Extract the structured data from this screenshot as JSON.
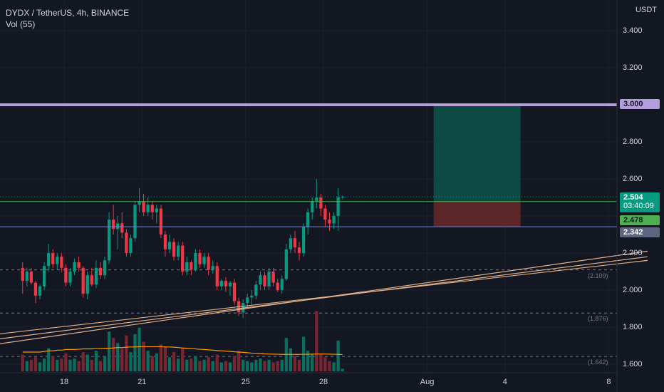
{
  "header": {
    "title": "DYDX / TetherUS, 4h, BINANCE",
    "indicator": "Vol (55)"
  },
  "price_axis": {
    "currency": "USDT",
    "ticks": [
      {
        "value": 3.4,
        "label": "3.400"
      },
      {
        "value": 3.2,
        "label": "3.200"
      },
      {
        "value": 2.8,
        "label": "2.800"
      },
      {
        "value": 2.6,
        "label": "2.600"
      },
      {
        "value": 2.2,
        "label": "2.200"
      },
      {
        "value": 2.0,
        "label": "2.000"
      },
      {
        "value": 1.8,
        "label": "1.800"
      },
      {
        "value": 1.6,
        "label": "1.600"
      }
    ]
  },
  "time_axis": {
    "ticks": [
      {
        "label": "18",
        "day": 18
      },
      {
        "label": "21",
        "day": 21
      },
      {
        "label": "25",
        "day": 25
      },
      {
        "label": "28",
        "day": 28
      },
      {
        "label": "Aug",
        "day": 32
      },
      {
        "label": "4",
        "day": 35
      },
      {
        "label": "8",
        "day": 39
      }
    ]
  },
  "price_labels": {
    "resistance": {
      "value": "3.000",
      "color": "#b39ddb",
      "text_color": "#131722"
    },
    "last_price": {
      "value": "2.504",
      "countdown": "03:40:09",
      "color": "#089981"
    },
    "entry": {
      "value": "2.478",
      "color": "#4caf50"
    },
    "stop": {
      "value": "2.342",
      "color": "#5d6580"
    }
  },
  "horizontal_levels": [
    {
      "value": 2.109,
      "label": "(2.109)"
    },
    {
      "value": 1.876,
      "label": "(1.876)"
    },
    {
      "value": 1.642,
      "label": "(1.642)"
    }
  ],
  "position_tool": {
    "entry": 2.478,
    "target": 3.0,
    "stop": 2.342,
    "start_day": 32.25,
    "end_day": 35.6,
    "profit_color": "#0d4a44",
    "loss_color": "#5c2628"
  },
  "chart_data": {
    "type": "candlestick",
    "title": "DYDX / TetherUS, 4h, BINANCE",
    "interval": "4h",
    "ylim": [
      1.56,
      3.5
    ],
    "volume_indicator": "Vol (55)",
    "candles": [
      {
        "o": 2.12,
        "h": 2.15,
        "l": 1.98,
        "c": 2.05
      },
      {
        "o": 2.05,
        "h": 2.12,
        "l": 2.02,
        "c": 2.1
      },
      {
        "o": 2.1,
        "h": 2.12,
        "l": 2.03,
        "c": 2.04
      },
      {
        "o": 2.04,
        "h": 2.05,
        "l": 1.93,
        "c": 1.97
      },
      {
        "o": 1.97,
        "h": 2.03,
        "l": 1.95,
        "c": 2.02
      },
      {
        "o": 2.02,
        "h": 2.15,
        "l": 2.0,
        "c": 2.13
      },
      {
        "o": 2.13,
        "h": 2.25,
        "l": 2.1,
        "c": 2.2
      },
      {
        "o": 2.2,
        "h": 2.22,
        "l": 2.12,
        "c": 2.14
      },
      {
        "o": 2.14,
        "h": 2.2,
        "l": 2.11,
        "c": 2.18
      },
      {
        "o": 2.18,
        "h": 2.2,
        "l": 2.1,
        "c": 2.12
      },
      {
        "o": 2.12,
        "h": 2.14,
        "l": 2.02,
        "c": 2.04
      },
      {
        "o": 2.04,
        "h": 2.12,
        "l": 2.02,
        "c": 2.1
      },
      {
        "o": 2.1,
        "h": 2.17,
        "l": 2.08,
        "c": 2.15
      },
      {
        "o": 2.15,
        "h": 2.18,
        "l": 2.1,
        "c": 2.12
      },
      {
        "o": 2.12,
        "h": 2.13,
        "l": 1.96,
        "c": 1.98
      },
      {
        "o": 1.98,
        "h": 2.1,
        "l": 1.95,
        "c": 2.08
      },
      {
        "o": 2.08,
        "h": 2.12,
        "l": 2.02,
        "c": 2.03
      },
      {
        "o": 2.03,
        "h": 2.16,
        "l": 2.01,
        "c": 2.12
      },
      {
        "o": 2.12,
        "h": 2.15,
        "l": 2.06,
        "c": 2.08
      },
      {
        "o": 2.08,
        "h": 2.18,
        "l": 2.06,
        "c": 2.16
      },
      {
        "o": 2.16,
        "h": 2.42,
        "l": 2.14,
        "c": 2.38
      },
      {
        "o": 2.38,
        "h": 2.46,
        "l": 2.3,
        "c": 2.33
      },
      {
        "o": 2.33,
        "h": 2.4,
        "l": 2.22,
        "c": 2.36
      },
      {
        "o": 2.36,
        "h": 2.42,
        "l": 2.28,
        "c": 2.31
      },
      {
        "o": 2.31,
        "h": 2.33,
        "l": 2.18,
        "c": 2.2
      },
      {
        "o": 2.2,
        "h": 2.3,
        "l": 2.18,
        "c": 2.28
      },
      {
        "o": 2.28,
        "h": 2.48,
        "l": 2.26,
        "c": 2.46
      },
      {
        "o": 2.46,
        "h": 2.55,
        "l": 2.42,
        "c": 2.48
      },
      {
        "o": 2.48,
        "h": 2.52,
        "l": 2.4,
        "c": 2.42
      },
      {
        "o": 2.42,
        "h": 2.5,
        "l": 2.4,
        "c": 2.46
      },
      {
        "o": 2.46,
        "h": 2.48,
        "l": 2.38,
        "c": 2.42
      },
      {
        "o": 2.42,
        "h": 2.46,
        "l": 2.36,
        "c": 2.44
      },
      {
        "o": 2.44,
        "h": 2.46,
        "l": 2.28,
        "c": 2.3
      },
      {
        "o": 2.3,
        "h": 2.32,
        "l": 2.18,
        "c": 2.22
      },
      {
        "o": 2.22,
        "h": 2.3,
        "l": 2.2,
        "c": 2.26
      },
      {
        "o": 2.26,
        "h": 2.28,
        "l": 2.16,
        "c": 2.18
      },
      {
        "o": 2.18,
        "h": 2.26,
        "l": 2.16,
        "c": 2.24
      },
      {
        "o": 2.24,
        "h": 2.26,
        "l": 2.08,
        "c": 2.1
      },
      {
        "o": 2.1,
        "h": 2.18,
        "l": 2.08,
        "c": 2.15
      },
      {
        "o": 2.15,
        "h": 2.16,
        "l": 2.08,
        "c": 2.11
      },
      {
        "o": 2.11,
        "h": 2.22,
        "l": 2.1,
        "c": 2.2
      },
      {
        "o": 2.2,
        "h": 2.22,
        "l": 2.12,
        "c": 2.14
      },
      {
        "o": 2.14,
        "h": 2.2,
        "l": 2.12,
        "c": 2.18
      },
      {
        "o": 2.18,
        "h": 2.2,
        "l": 2.08,
        "c": 2.11
      },
      {
        "o": 2.11,
        "h": 2.16,
        "l": 2.09,
        "c": 2.13
      },
      {
        "o": 2.13,
        "h": 2.15,
        "l": 2.0,
        "c": 2.02
      },
      {
        "o": 2.02,
        "h": 2.06,
        "l": 2.0,
        "c": 2.05
      },
      {
        "o": 2.05,
        "h": 2.07,
        "l": 1.99,
        "c": 2.02
      },
      {
        "o": 2.02,
        "h": 2.05,
        "l": 1.97,
        "c": 2.04
      },
      {
        "o": 2.04,
        "h": 2.06,
        "l": 1.92,
        "c": 1.94
      },
      {
        "o": 1.94,
        "h": 1.96,
        "l": 1.86,
        "c": 1.88
      },
      {
        "o": 1.88,
        "h": 1.95,
        "l": 1.85,
        "c": 1.93
      },
      {
        "o": 1.93,
        "h": 1.98,
        "l": 1.9,
        "c": 1.96
      },
      {
        "o": 1.96,
        "h": 2.0,
        "l": 1.92,
        "c": 1.97
      },
      {
        "o": 1.97,
        "h": 2.05,
        "l": 1.95,
        "c": 2.03
      },
      {
        "o": 2.03,
        "h": 2.1,
        "l": 2.0,
        "c": 2.08
      },
      {
        "o": 2.08,
        "h": 2.1,
        "l": 2.0,
        "c": 2.02
      },
      {
        "o": 2.02,
        "h": 2.12,
        "l": 2.0,
        "c": 2.1
      },
      {
        "o": 2.1,
        "h": 2.12,
        "l": 2.02,
        "c": 2.04
      },
      {
        "o": 2.04,
        "h": 2.06,
        "l": 1.99,
        "c": 2.0
      },
      {
        "o": 2.0,
        "h": 2.08,
        "l": 1.98,
        "c": 2.06
      },
      {
        "o": 2.06,
        "h": 2.25,
        "l": 2.05,
        "c": 2.22
      },
      {
        "o": 2.22,
        "h": 2.3,
        "l": 2.2,
        "c": 2.28
      },
      {
        "o": 2.28,
        "h": 2.32,
        "l": 2.2,
        "c": 2.23
      },
      {
        "o": 2.23,
        "h": 2.26,
        "l": 2.16,
        "c": 2.2
      },
      {
        "o": 2.2,
        "h": 2.36,
        "l": 2.18,
        "c": 2.34
      },
      {
        "o": 2.34,
        "h": 2.44,
        "l": 2.3,
        "c": 2.42
      },
      {
        "o": 2.42,
        "h": 2.5,
        "l": 2.38,
        "c": 2.48
      },
      {
        "o": 2.48,
        "h": 2.6,
        "l": 2.44,
        "c": 2.5
      },
      {
        "o": 2.5,
        "h": 2.52,
        "l": 2.4,
        "c": 2.44
      },
      {
        "o": 2.44,
        "h": 2.46,
        "l": 2.34,
        "c": 2.38
      },
      {
        "o": 2.38,
        "h": 2.42,
        "l": 2.32,
        "c": 2.36
      },
      {
        "o": 2.36,
        "h": 2.42,
        "l": 2.33,
        "c": 2.4
      },
      {
        "o": 2.4,
        "h": 2.55,
        "l": 2.32,
        "c": 2.5
      },
      {
        "o": 2.5,
        "h": 2.51,
        "l": 2.49,
        "c": 2.504
      }
    ],
    "volume": [
      {
        "v": 1.3,
        "up": false
      },
      {
        "v": 0.8,
        "up": true
      },
      {
        "v": 0.9,
        "up": false
      },
      {
        "v": 1.1,
        "up": false
      },
      {
        "v": 0.7,
        "up": true
      },
      {
        "v": 1.0,
        "up": true
      },
      {
        "v": 1.8,
        "up": true
      },
      {
        "v": 1.2,
        "up": false
      },
      {
        "v": 0.9,
        "up": true
      },
      {
        "v": 1.0,
        "up": false
      },
      {
        "v": 1.4,
        "up": false
      },
      {
        "v": 0.9,
        "up": true
      },
      {
        "v": 1.0,
        "up": true
      },
      {
        "v": 0.8,
        "up": false
      },
      {
        "v": 1.5,
        "up": false
      },
      {
        "v": 1.3,
        "up": true
      },
      {
        "v": 0.9,
        "up": false
      },
      {
        "v": 1.6,
        "up": true
      },
      {
        "v": 0.8,
        "up": false
      },
      {
        "v": 1.2,
        "up": true
      },
      {
        "v": 3.1,
        "up": true
      },
      {
        "v": 2.6,
        "up": false
      },
      {
        "v": 2.2,
        "up": true
      },
      {
        "v": 1.8,
        "up": false
      },
      {
        "v": 2.8,
        "up": false
      },
      {
        "v": 1.5,
        "up": true
      },
      {
        "v": 2.9,
        "up": true
      },
      {
        "v": 3.4,
        "up": true
      },
      {
        "v": 2.3,
        "up": false
      },
      {
        "v": 1.6,
        "up": true
      },
      {
        "v": 1.2,
        "up": false
      },
      {
        "v": 1.4,
        "up": true
      },
      {
        "v": 2.1,
        "up": false
      },
      {
        "v": 1.9,
        "up": false
      },
      {
        "v": 1.1,
        "up": true
      },
      {
        "v": 1.5,
        "up": false
      },
      {
        "v": 1.0,
        "up": true
      },
      {
        "v": 1.8,
        "up": false
      },
      {
        "v": 0.9,
        "up": true
      },
      {
        "v": 1.0,
        "up": false
      },
      {
        "v": 1.2,
        "up": true
      },
      {
        "v": 0.8,
        "up": false
      },
      {
        "v": 0.9,
        "up": true
      },
      {
        "v": 1.1,
        "up": false
      },
      {
        "v": 0.8,
        "up": true
      },
      {
        "v": 1.3,
        "up": false
      },
      {
        "v": 0.7,
        "up": true
      },
      {
        "v": 0.8,
        "up": false
      },
      {
        "v": 0.7,
        "up": true
      },
      {
        "v": 1.2,
        "up": false
      },
      {
        "v": 1.6,
        "up": false
      },
      {
        "v": 0.9,
        "up": true
      },
      {
        "v": 0.8,
        "up": true
      },
      {
        "v": 0.7,
        "up": true
      },
      {
        "v": 0.9,
        "up": true
      },
      {
        "v": 1.0,
        "up": true
      },
      {
        "v": 0.8,
        "up": false
      },
      {
        "v": 0.9,
        "up": true
      },
      {
        "v": 0.7,
        "up": false
      },
      {
        "v": 0.8,
        "up": false
      },
      {
        "v": 0.9,
        "up": true
      },
      {
        "v": 2.6,
        "up": true
      },
      {
        "v": 1.8,
        "up": true
      },
      {
        "v": 1.2,
        "up": false
      },
      {
        "v": 0.9,
        "up": false
      },
      {
        "v": 2.7,
        "up": true
      },
      {
        "v": 1.6,
        "up": true
      },
      {
        "v": 1.3,
        "up": true
      },
      {
        "v": 4.7,
        "up": false
      },
      {
        "v": 1.4,
        "up": false
      },
      {
        "v": 1.1,
        "up": false
      },
      {
        "v": 0.8,
        "up": false
      },
      {
        "v": 0.7,
        "up": true
      },
      {
        "v": 2.4,
        "up": true
      },
      {
        "v": 0.2,
        "up": true
      }
    ],
    "volume_ma": [
      1.5,
      1.5,
      1.5,
      1.5,
      1.5,
      1.55,
      1.6,
      1.6,
      1.65,
      1.65,
      1.7,
      1.7,
      1.7,
      1.72,
      1.75,
      1.75,
      1.75,
      1.78,
      1.78,
      1.8,
      1.8,
      1.82,
      1.85,
      1.85,
      1.88,
      1.9,
      1.9,
      1.92,
      1.92,
      1.92,
      1.92,
      1.92,
      1.92,
      1.9,
      1.9,
      1.88,
      1.85,
      1.82,
      1.8,
      1.78,
      1.75,
      1.72,
      1.7,
      1.68,
      1.65,
      1.62,
      1.6,
      1.58,
      1.55,
      1.52,
      1.5,
      1.48,
      1.45,
      1.42,
      1.4,
      1.38,
      1.36,
      1.35,
      1.34,
      1.33,
      1.32,
      1.32,
      1.32,
      1.32,
      1.32,
      1.33,
      1.33,
      1.34,
      1.35,
      1.35,
      1.35,
      1.34,
      1.33,
      1.32,
      1.31
    ],
    "trendlines": [
      {
        "from": {
          "day": 14.0,
          "price": 1.74
        },
        "to": {
          "day": 40.5,
          "price": 2.16
        }
      },
      {
        "from": {
          "day": 14.0,
          "price": 1.71
        },
        "to": {
          "day": 40.5,
          "price": 2.18
        }
      },
      {
        "from": {
          "day": 14.0,
          "price": 1.68
        },
        "to": {
          "day": 40.5,
          "price": 2.21
        }
      }
    ],
    "first_candle_day": 16.4,
    "candles_per_day": 6
  }
}
